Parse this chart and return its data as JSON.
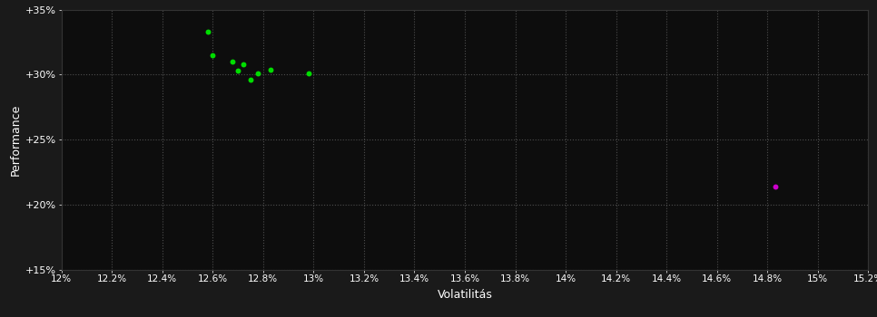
{
  "title": "",
  "xlabel": "Volatilitás",
  "ylabel": "Performance",
  "background_color": "#1a1a1a",
  "plot_bg_color": "#0d0d0d",
  "grid_color": "#555555",
  "text_color": "#ffffff",
  "xlim": [
    0.12,
    0.152
  ],
  "ylim": [
    0.15,
    0.35
  ],
  "xticks": [
    0.12,
    0.122,
    0.124,
    0.126,
    0.128,
    0.13,
    0.132,
    0.134,
    0.136,
    0.138,
    0.14,
    0.142,
    0.144,
    0.146,
    0.148,
    0.15,
    0.152
  ],
  "yticks": [
    0.15,
    0.2,
    0.25,
    0.3,
    0.35
  ],
  "xtick_labels": [
    "12%",
    "12.2%",
    "12.4%",
    "12.6%",
    "12.8%",
    "13%",
    "13.2%",
    "13.4%",
    "13.6%",
    "13.8%",
    "14%",
    "14.2%",
    "14.4%",
    "14.6%",
    "14.8%",
    "15%",
    "15.2%"
  ],
  "ytick_labels": [
    "+15%",
    "+20%",
    "+25%",
    "+30%",
    "+35%"
  ],
  "green_dots": [
    [
      0.1258,
      0.333
    ],
    [
      0.126,
      0.315
    ],
    [
      0.1268,
      0.31
    ],
    [
      0.1272,
      0.308
    ],
    [
      0.127,
      0.303
    ],
    [
      0.1278,
      0.301
    ],
    [
      0.1275,
      0.296
    ],
    [
      0.1283,
      0.304
    ],
    [
      0.1298,
      0.301
    ]
  ],
  "magenta_dot": [
    0.1483,
    0.214
  ],
  "green_color": "#00dd00",
  "magenta_color": "#cc00cc",
  "dot_size": 18
}
